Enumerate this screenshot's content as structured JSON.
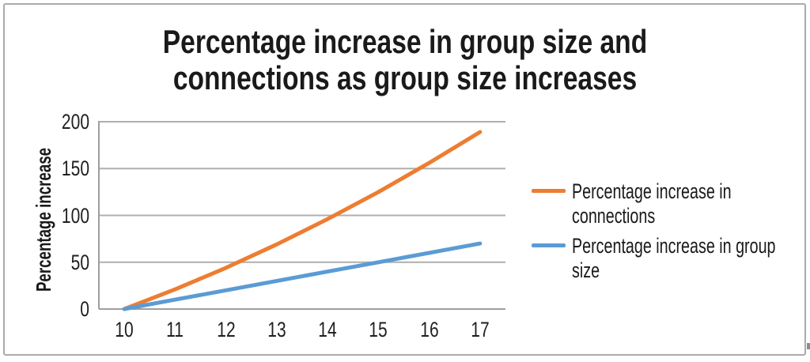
{
  "chart_data": {
    "type": "line",
    "title": "Percentage increase in group size and connections as group size increases",
    "title_lines": [
      "Percentage increase in group size and",
      "connections as group size increases"
    ],
    "xlabel": "",
    "ylabel": "Percentage increase",
    "x": [
      10,
      11,
      12,
      13,
      14,
      15,
      16,
      17
    ],
    "series": [
      {
        "name": "Percentage increase in connections",
        "color": "#ED7D31",
        "values": [
          0,
          21,
          44,
          69,
          96,
          125,
          156,
          189
        ]
      },
      {
        "name": "Percentage increase in group size",
        "color": "#5B9BD5",
        "values": [
          0,
          10,
          20,
          30,
          40,
          50,
          60,
          70
        ]
      }
    ],
    "ylim": [
      0,
      200
    ],
    "yticks": [
      0,
      50,
      100,
      150,
      200
    ],
    "grid": "horizontal",
    "legend_position": "right",
    "grid_color": "#AFAFAF",
    "axis_color": "#9E9E9E",
    "text_color": "#1F1F1F",
    "frame_border_color": "#ABABAB",
    "background_color": "#FFFFFF"
  }
}
